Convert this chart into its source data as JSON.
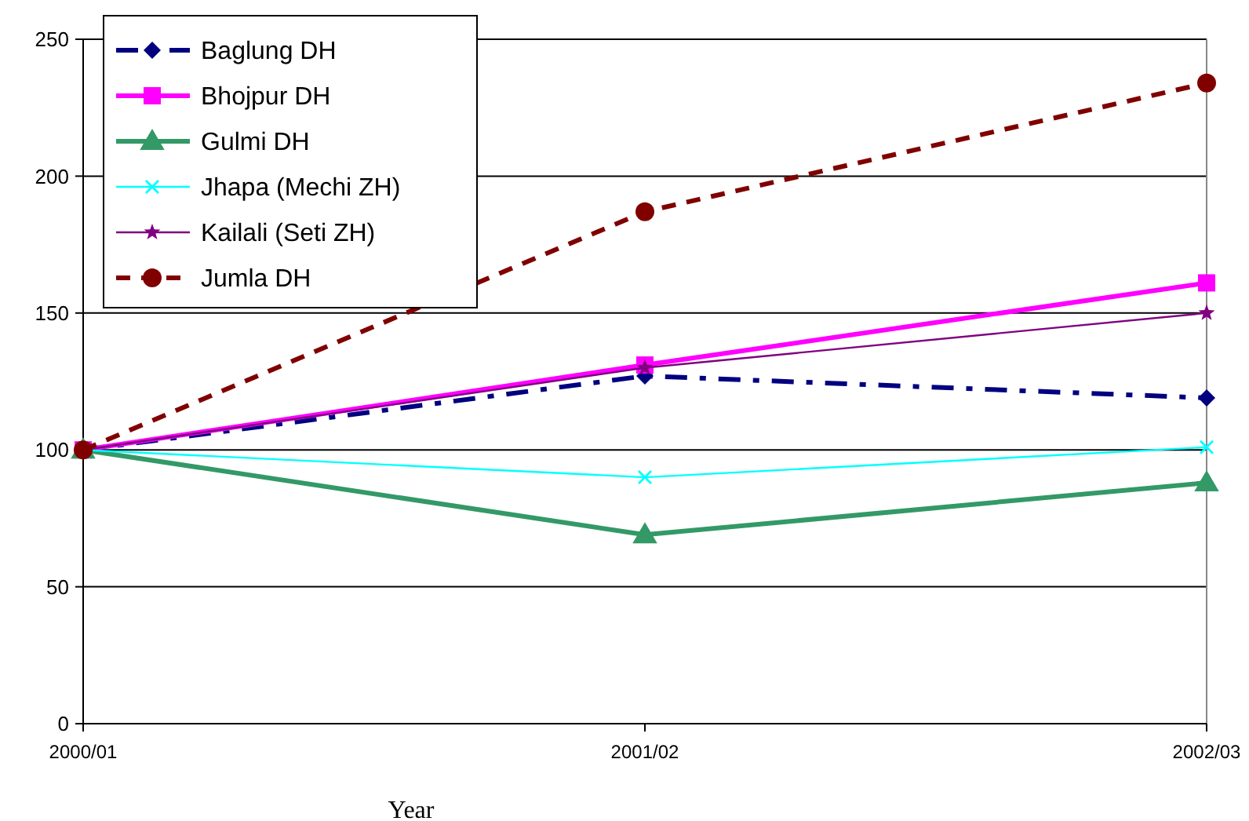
{
  "chart_data": {
    "type": "line",
    "xlabel": "Year",
    "categories": [
      "2000/01",
      "2001/02",
      "2002/03"
    ],
    "ylim": [
      0,
      250
    ],
    "yticks": [
      0,
      50,
      100,
      150,
      200,
      250
    ],
    "grid": "y",
    "legend": "top left",
    "series": [
      {
        "name": "Baglung DH",
        "color": "#000080",
        "values": [
          100,
          127,
          119
        ],
        "marker": "diamond",
        "line_style": "dashdot"
      },
      {
        "name": "Bhojpur DH",
        "color": "#ff00ff",
        "values": [
          100,
          131,
          161
        ],
        "marker": "square",
        "line_style": "solid"
      },
      {
        "name": "Gulmi DH",
        "color": "#339966",
        "values": [
          100,
          69,
          88
        ],
        "marker": "triangle",
        "line_style": "solid"
      },
      {
        "name": "Jhapa (Mechi ZH)",
        "color": "#00ffff",
        "values": [
          100,
          90,
          101
        ],
        "marker": "cross",
        "line_style": "solid"
      },
      {
        "name": "Kailali (Seti ZH)",
        "color": "#800080",
        "values": [
          100,
          130,
          150
        ],
        "marker": "star",
        "line_style": "solid"
      },
      {
        "name": "Jumla DH",
        "color": "#800000",
        "values": [
          100,
          187,
          234
        ],
        "marker": "circle",
        "line_style": "dashed"
      }
    ]
  }
}
